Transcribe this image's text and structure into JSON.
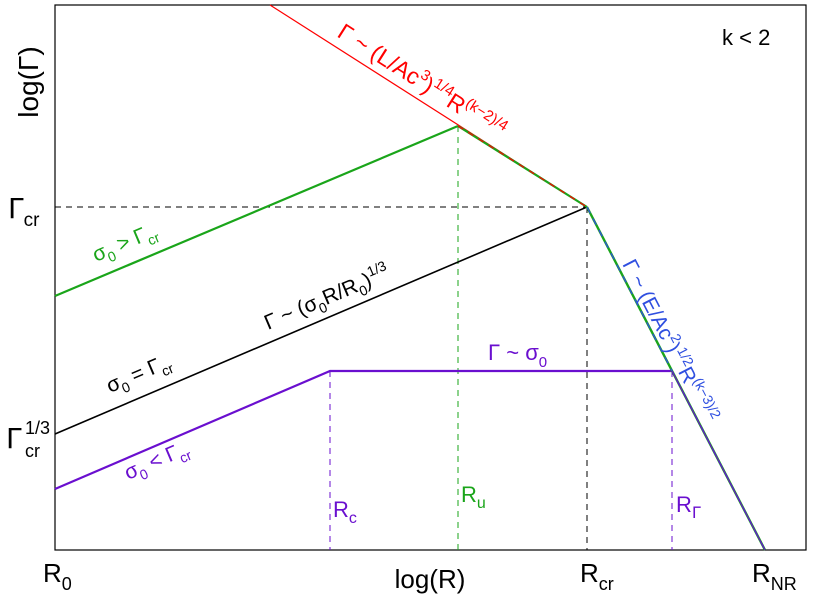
{
  "regime": "k < 2",
  "axes": {
    "xlabel": "log(R)",
    "ylabel": "log(Γ)"
  },
  "y_ticks": {
    "gamma_cr": {
      "base": "Γ",
      "sub": "cr"
    },
    "gamma_cr_third": {
      "base": "Γ",
      "sup": "1/3",
      "sub": "cr"
    }
  },
  "x_ticks": {
    "r0": {
      "base": "R",
      "sub": "0"
    },
    "rcr": {
      "base": "R",
      "sub": "cr"
    },
    "rnr": {
      "base": "R",
      "sub": "NR"
    }
  },
  "radius_labels": {
    "rc": {
      "base": "R",
      "sub": "c"
    },
    "ru": {
      "base": "R",
      "sub": "u"
    },
    "rgamma": {
      "base": "R",
      "sub": "Γ"
    }
  },
  "annotations": {
    "coasting_red": {
      "t1": "Γ ~ (L/Ac",
      "t1sup": "3",
      "t2": ")",
      "t2sup": "1/4",
      "t3": "R",
      "t3sup": "(k−2)/4"
    },
    "coasting_blue": {
      "t1": "Γ ~ (E/Ac",
      "t1sup": "2",
      "t2": ")",
      "t2sup": "1/2",
      "t3": "R",
      "t3sup": "(k−3)/2"
    },
    "accel": {
      "t1": "Γ ~ (σ",
      "t1sub": "0",
      "t2": "R/R",
      "t2sub": "0",
      "t3": ")",
      "t3sup": "1/3"
    },
    "sigma_gt": {
      "t1": "σ",
      "t1sub": "0",
      "t2": " > Γ",
      "t2sub": "cr"
    },
    "sigma_eq": {
      "t1": "σ",
      "t1sub": "0",
      "t2": " = Γ",
      "t2sub": "cr"
    },
    "sigma_lt": {
      "t1": "σ",
      "t1sub": "0",
      "t2": " < Γ",
      "t2sub": "cr"
    },
    "sat": {
      "t1": "Γ ~ σ",
      "t1sub": "0"
    }
  },
  "colors": {
    "red": "#ff0000",
    "green": "#1aa51a",
    "black": "#000000",
    "purple": "#6a0fcf",
    "blue": "#2f4fe0"
  }
}
